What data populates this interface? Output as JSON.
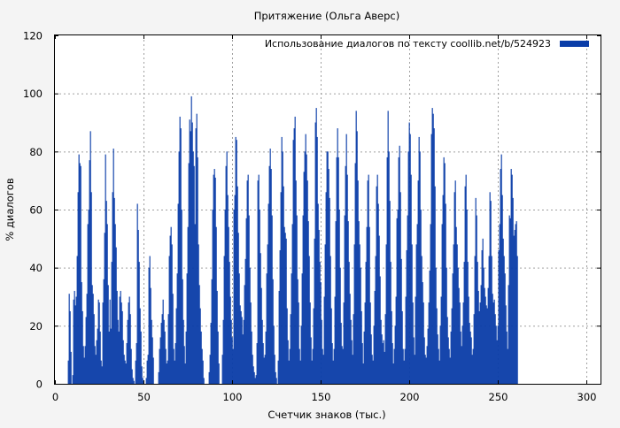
{
  "chart_data": {
    "type": "bar",
    "title": "Притяжение (Ольга Аверс)",
    "xlabel": "Счетчик знаков (тыс.)",
    "ylabel": "% диалогов",
    "xlim": [
      0,
      308
    ],
    "ylim": [
      0,
      120
    ],
    "xticks": [
      0,
      50,
      100,
      150,
      200,
      250,
      300
    ],
    "yticks": [
      0,
      20,
      40,
      60,
      80,
      100,
      120
    ],
    "grid": true,
    "legend_position": "top-right",
    "series": [
      {
        "name": "Использование диалогов по тексту  coollib.net/b/524923",
        "color": "#0a3da8",
        "x_start": 7.3,
        "x_step": 0.5,
        "values": [
          8,
          31,
          25,
          11,
          0,
          3,
          29,
          32,
          27,
          30,
          44,
          66,
          79,
          76,
          75,
          35,
          25,
          13,
          9,
          13,
          23,
          31,
          55,
          60,
          77,
          87,
          66,
          34,
          31,
          24,
          13,
          10,
          15,
          19,
          29,
          28,
          18,
          8,
          6,
          28,
          36,
          52,
          79,
          63,
          55,
          34,
          18,
          29,
          19,
          42,
          66,
          81,
          64,
          55,
          47,
          32,
          22,
          18,
          30,
          32,
          28,
          25,
          15,
          10,
          8,
          7,
          14,
          22,
          28,
          30,
          24,
          12,
          5,
          2,
          1,
          0,
          8,
          14,
          62,
          53,
          42,
          26,
          18,
          6,
          2,
          1,
          0,
          0,
          2,
          8,
          10,
          40,
          44,
          33,
          22,
          16,
          9,
          0,
          0,
          0,
          0,
          0,
          4,
          12,
          16,
          21,
          24,
          29,
          22,
          18,
          12,
          7,
          8,
          24,
          44,
          51,
          54,
          48,
          31,
          12,
          8,
          14,
          26,
          38,
          62,
          80,
          92,
          88,
          60,
          36,
          22,
          13,
          7,
          18,
          38,
          54,
          76,
          91,
          87,
          99,
          90,
          80,
          75,
          55,
          88,
          93,
          78,
          48,
          34,
          26,
          18,
          12,
          8,
          2,
          0,
          0,
          0,
          0,
          0,
          4,
          10,
          21,
          36,
          60,
          72,
          74,
          71,
          54,
          32,
          18,
          7,
          0,
          0,
          0,
          10,
          22,
          44,
          60,
          75,
          80,
          65,
          54,
          42,
          30,
          22,
          16,
          12,
          60,
          65,
          85,
          84,
          68,
          52,
          38,
          27,
          25,
          23,
          17,
          22,
          34,
          43,
          57,
          70,
          72,
          58,
          40,
          28,
          18,
          10,
          6,
          4,
          2,
          3,
          14,
          70,
          72,
          60,
          45,
          33,
          22,
          14,
          9,
          10,
          18,
          38,
          48,
          62,
          75,
          81,
          74,
          58,
          36,
          20,
          10,
          4,
          2,
          0,
          8,
          32,
          46,
          66,
          85,
          80,
          68,
          54,
          52,
          50,
          26,
          15,
          8,
          12,
          24,
          38,
          55,
          84,
          88,
          92,
          70,
          58,
          36,
          28,
          12,
          8,
          20,
          38,
          58,
          73,
          80,
          86,
          79,
          70,
          56,
          44,
          28,
          16,
          8,
          12,
          26,
          50,
          90,
          95,
          85,
          62,
          53,
          42,
          35,
          22,
          12,
          10,
          30,
          48,
          66,
          80,
          80,
          74,
          64,
          44,
          26,
          14,
          8,
          12,
          30,
          56,
          78,
          88,
          78,
          60,
          40,
          21,
          13,
          12,
          28,
          58,
          75,
          86,
          72,
          56,
          42,
          31,
          22,
          15,
          10,
          24,
          48,
          76,
          94,
          87,
          70,
          56,
          48,
          40,
          25,
          14,
          7,
          18,
          28,
          42,
          54,
          70,
          72,
          54,
          28,
          17,
          10,
          8,
          20,
          32,
          44,
          68,
          72,
          62,
          51,
          37,
          22,
          17,
          14,
          15,
          11,
          24,
          48,
          78,
          94,
          80,
          63,
          42,
          25,
          14,
          7,
          12,
          20,
          30,
          57,
          60,
          78,
          82,
          66,
          43,
          25,
          12,
          8,
          12,
          30,
          46,
          58,
          80,
          90,
          86,
          72,
          48,
          28,
          16,
          10,
          30,
          48,
          55,
          70,
          85,
          80,
          60,
          44,
          35,
          28,
          16,
          10,
          9,
          13,
          19,
          28,
          39,
          55,
          86,
          95,
          93,
          88,
          68,
          40,
          26,
          17,
          12,
          8,
          20,
          30,
          55,
          65,
          78,
          76,
          62,
          40,
          23,
          16,
          12,
          9,
          18,
          26,
          38,
          48,
          66,
          70,
          54,
          48,
          40,
          33,
          28,
          18,
          13,
          20,
          28,
          42,
          68,
          72,
          60,
          42,
          30,
          21,
          18,
          16,
          10,
          12,
          24,
          44,
          64,
          58,
          42,
          32,
          25,
          28,
          34,
          46,
          50,
          40,
          33,
          30,
          27,
          26,
          33,
          44,
          66,
          63,
          44,
          31,
          28,
          29,
          24,
          20,
          15,
          20,
          46,
          55,
          74,
          79,
          65,
          50,
          44,
          38,
          27,
          18,
          12,
          34,
          58,
          57,
          74,
          72,
          64,
          51,
          53,
          55,
          56,
          44
        ]
      }
    ]
  }
}
